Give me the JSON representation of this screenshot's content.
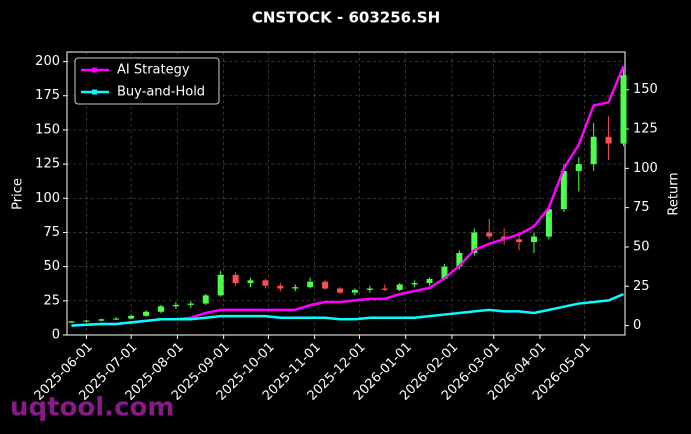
{
  "chart_data": {
    "type": "candlestick",
    "title": "CNSTOCK - 603256.SH",
    "ylabel": "Price",
    "y2label": "Return",
    "watermark": "uqtool.com",
    "x": [
      "2025-05-22",
      "2025-06-01",
      "2025-06-11",
      "2025-06-21",
      "2025-07-01",
      "2025-07-11",
      "2025-07-21",
      "2025-07-31",
      "2025-08-10",
      "2025-08-20",
      "2025-08-30",
      "2025-09-09",
      "2025-09-19",
      "2025-09-29",
      "2025-10-09",
      "2025-10-19",
      "2025-10-29",
      "2025-11-08",
      "2025-11-18",
      "2025-11-28",
      "2025-12-08",
      "2025-12-18",
      "2025-12-28",
      "2026-01-07",
      "2026-01-17",
      "2026-01-27",
      "2026-02-06",
      "2026-02-16",
      "2026-02-26",
      "2026-03-08",
      "2026-03-18",
      "2026-03-28",
      "2026-04-07",
      "2026-04-17",
      "2026-04-27",
      "2026-05-07",
      "2026-05-17",
      "2026-05-27"
    ],
    "open": [
      9,
      10,
      10.5,
      11.5,
      12,
      14,
      17,
      21,
      22,
      23,
      29,
      44,
      38,
      40,
      36,
      34,
      35,
      39,
      34,
      31,
      33,
      34,
      33,
      37,
      38,
      41,
      50,
      60,
      75,
      72,
      70,
      68,
      72,
      92,
      120,
      125,
      145,
      140
    ],
    "high": [
      10,
      11,
      12,
      13,
      15,
      18,
      22,
      24,
      25,
      30,
      47,
      46,
      42,
      41,
      38,
      37,
      42,
      40,
      35,
      34,
      36,
      37,
      38,
      40,
      42,
      52,
      62,
      78,
      85,
      78,
      74,
      75,
      95,
      125,
      130,
      155,
      160,
      195
    ],
    "low": [
      9,
      9.5,
      10,
      11,
      11.5,
      13.5,
      16,
      19,
      20,
      22,
      28,
      36,
      35,
      34,
      32,
      32,
      34,
      33,
      30,
      29,
      31,
      32,
      32,
      35,
      36,
      40,
      48,
      58,
      70,
      66,
      62,
      60,
      70,
      90,
      105,
      120,
      128,
      138
    ],
    "close": [
      10,
      10.5,
      11.5,
      12,
      14,
      17,
      21,
      22,
      23,
      29,
      44,
      38,
      40,
      36,
      34,
      35,
      39,
      34,
      31,
      33,
      34,
      33,
      37,
      38,
      41,
      50,
      60,
      75,
      72,
      70,
      68,
      72,
      92,
      120,
      125,
      145,
      140,
      190
    ],
    "up_color": "#4cff4c",
    "down_color": "#ff4c4c",
    "series": [
      {
        "name": "AI Strategy",
        "color": "#ff00ff",
        "axis": "y2",
        "values": [
          0,
          0.5,
          1,
          1,
          2,
          3,
          4,
          4,
          5,
          8,
          10,
          10,
          10,
          10,
          10,
          10,
          13,
          15,
          15,
          16,
          17,
          17,
          20,
          22,
          24,
          30,
          38,
          48,
          52,
          55,
          58,
          63,
          75,
          100,
          115,
          140,
          142,
          165
        ]
      },
      {
        "name": "Buy-and-Hold",
        "color": "#00ffff",
        "axis": "y2",
        "values": [
          0,
          0.5,
          1,
          1,
          2,
          3,
          4,
          4,
          4,
          5,
          6,
          6,
          6,
          6,
          5,
          5,
          5,
          5,
          4,
          4,
          5,
          5,
          5,
          5,
          6,
          7,
          8,
          9,
          10,
          9,
          9,
          8,
          10,
          12,
          14,
          15,
          16,
          20
        ]
      }
    ],
    "xlim": [
      "2025-05-19",
      "2026-05-28"
    ],
    "xticks": [
      "2025-06-01",
      "2025-07-01",
      "2025-08-01",
      "2025-09-01",
      "2025-10-01",
      "2025-11-01",
      "2025-12-01",
      "2026-01-01",
      "2026-02-01",
      "2026-03-01",
      "2026-04-01",
      "2026-05-01"
    ],
    "ylim": [
      0,
      207
    ],
    "yticks": [
      0,
      25,
      50,
      75,
      100,
      125,
      150,
      175,
      200
    ],
    "y2lim": [
      -6,
      174
    ],
    "y2ticks": [
      0,
      25,
      50,
      75,
      100,
      125,
      150
    ],
    "grid": true,
    "legend": "upper left"
  }
}
